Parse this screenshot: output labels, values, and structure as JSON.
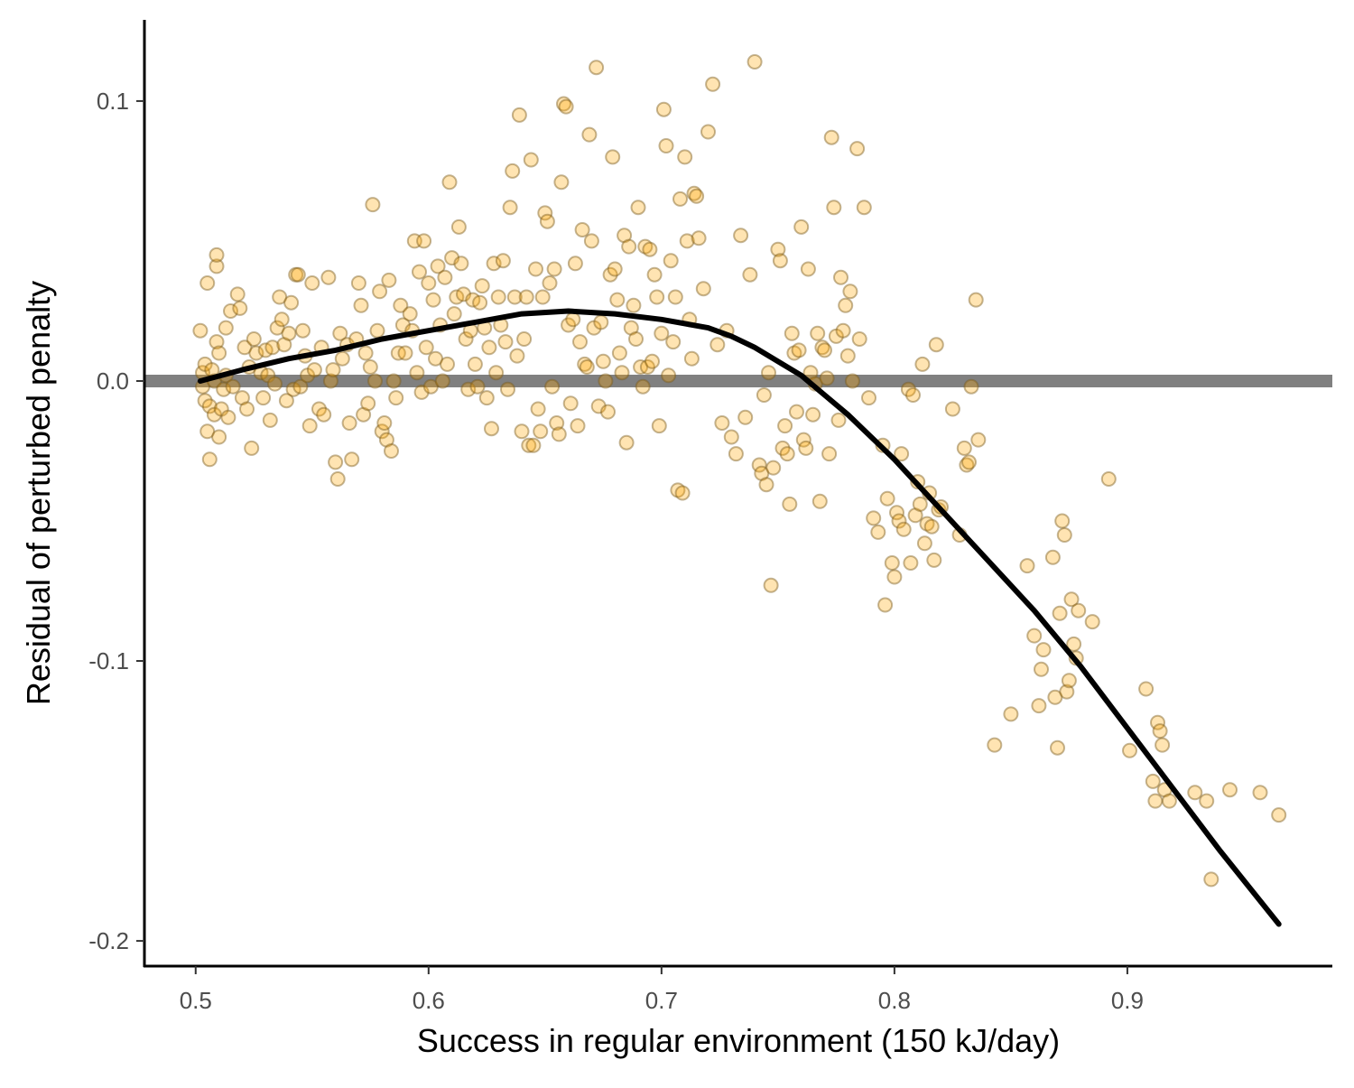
{
  "chart_data": {
    "type": "scatter",
    "title": "",
    "xlabel": "Success in regular environment (150 kJ/day)",
    "ylabel": "Residual of perturbed penalty",
    "xlim": [
      0.478,
      0.988
    ],
    "ylim": [
      -0.209,
      0.129
    ],
    "x_ticks": [
      0.5,
      0.6,
      0.7,
      0.8,
      0.9
    ],
    "x_tick_labels": [
      "0.5",
      "0.6",
      "0.7",
      "0.8",
      "0.9"
    ],
    "y_ticks": [
      -0.2,
      -0.1,
      0.0,
      0.1
    ],
    "y_tick_labels": [
      "-0.2",
      "-0.1",
      "0.0",
      "0.1"
    ],
    "grid": false,
    "legend": "none",
    "reference_line": {
      "y": 0.0,
      "color": "#808080"
    },
    "colors": {
      "point_fill": "#FFA500",
      "point_stroke": "#7a5a1a",
      "curve": "#000000",
      "axis": "#000000"
    },
    "points": [
      [
        0.502,
        0.018
      ],
      [
        0.503,
        0.003
      ],
      [
        0.504,
        0.006
      ],
      [
        0.503,
        -0.002
      ],
      [
        0.504,
        -0.007
      ],
      [
        0.505,
        0.035
      ],
      [
        0.505,
        -0.018
      ],
      [
        0.506,
        -0.009
      ],
      [
        0.506,
        -0.028
      ],
      [
        0.507,
        0.004
      ],
      [
        0.508,
        -0.012
      ],
      [
        0.508,
        0.0
      ],
      [
        0.509,
        0.041
      ],
      [
        0.509,
        0.045
      ],
      [
        0.509,
        0.014
      ],
      [
        0.51,
        -0.02
      ],
      [
        0.51,
        0.01
      ],
      [
        0.511,
        -0.01
      ],
      [
        0.512,
        -0.003
      ],
      [
        0.513,
        0.002
      ],
      [
        0.513,
        0.019
      ],
      [
        0.514,
        -0.013
      ],
      [
        0.515,
        0.025
      ],
      [
        0.516,
        -0.002
      ],
      [
        0.518,
        0.031
      ],
      [
        0.519,
        0.026
      ],
      [
        0.52,
        -0.006
      ],
      [
        0.521,
        0.012
      ],
      [
        0.522,
        -0.01
      ],
      [
        0.523,
        0.005
      ],
      [
        0.524,
        -0.024
      ],
      [
        0.525,
        0.015
      ],
      [
        0.526,
        0.01
      ],
      [
        0.528,
        0.003
      ],
      [
        0.529,
        -0.006
      ],
      [
        0.53,
        0.011
      ],
      [
        0.531,
        0.002
      ],
      [
        0.532,
        -0.014
      ],
      [
        0.533,
        0.012
      ],
      [
        0.534,
        -0.001
      ],
      [
        0.535,
        0.019
      ],
      [
        0.536,
        0.03
      ],
      [
        0.537,
        0.022
      ],
      [
        0.538,
        0.013
      ],
      [
        0.539,
        -0.007
      ],
      [
        0.54,
        0.017
      ],
      [
        0.541,
        0.028
      ],
      [
        0.542,
        -0.003
      ],
      [
        0.543,
        0.038
      ],
      [
        0.544,
        0.038
      ],
      [
        0.545,
        -0.002
      ],
      [
        0.546,
        0.018
      ],
      [
        0.547,
        0.009
      ],
      [
        0.548,
        0.002
      ],
      [
        0.549,
        -0.016
      ],
      [
        0.55,
        0.035
      ],
      [
        0.551,
        0.004
      ],
      [
        0.553,
        -0.01
      ],
      [
        0.554,
        0.012
      ],
      [
        0.555,
        -0.012
      ],
      [
        0.557,
        0.037
      ],
      [
        0.558,
        0.0
      ],
      [
        0.559,
        0.004
      ],
      [
        0.56,
        -0.029
      ],
      [
        0.561,
        -0.035
      ],
      [
        0.562,
        0.017
      ],
      [
        0.563,
        0.008
      ],
      [
        0.565,
        0.013
      ],
      [
        0.566,
        -0.015
      ],
      [
        0.567,
        -0.028
      ],
      [
        0.569,
        0.015
      ],
      [
        0.57,
        0.035
      ],
      [
        0.571,
        0.027
      ],
      [
        0.572,
        -0.012
      ],
      [
        0.573,
        0.01
      ],
      [
        0.574,
        -0.008
      ],
      [
        0.575,
        0.005
      ],
      [
        0.576,
        0.063
      ],
      [
        0.577,
        0.0
      ],
      [
        0.578,
        0.018
      ],
      [
        0.579,
        0.032
      ],
      [
        0.58,
        -0.018
      ],
      [
        0.581,
        -0.015
      ],
      [
        0.582,
        -0.021
      ],
      [
        0.583,
        0.036
      ],
      [
        0.584,
        -0.025
      ],
      [
        0.585,
        0.0
      ],
      [
        0.586,
        -0.006
      ],
      [
        0.587,
        0.01
      ],
      [
        0.588,
        0.027
      ],
      [
        0.589,
        0.02
      ],
      [
        0.59,
        0.01
      ],
      [
        0.592,
        0.024
      ],
      [
        0.593,
        0.018
      ],
      [
        0.594,
        0.05
      ],
      [
        0.595,
        0.003
      ],
      [
        0.596,
        0.039
      ],
      [
        0.597,
        -0.004
      ],
      [
        0.598,
        0.05
      ],
      [
        0.599,
        0.012
      ],
      [
        0.6,
        0.035
      ],
      [
        0.601,
        -0.002
      ],
      [
        0.602,
        0.029
      ],
      [
        0.603,
        0.008
      ],
      [
        0.604,
        0.041
      ],
      [
        0.605,
        0.02
      ],
      [
        0.606,
        0.0
      ],
      [
        0.607,
        0.037
      ],
      [
        0.608,
        0.006
      ],
      [
        0.609,
        0.071
      ],
      [
        0.61,
        0.044
      ],
      [
        0.611,
        0.024
      ],
      [
        0.612,
        0.03
      ],
      [
        0.613,
        0.055
      ],
      [
        0.614,
        0.042
      ],
      [
        0.615,
        0.031
      ],
      [
        0.616,
        0.015
      ],
      [
        0.617,
        -0.003
      ],
      [
        0.618,
        0.018
      ],
      [
        0.619,
        0.029
      ],
      [
        0.62,
        0.006
      ],
      [
        0.621,
        -0.002
      ],
      [
        0.622,
        0.028
      ],
      [
        0.623,
        0.034
      ],
      [
        0.624,
        0.019
      ],
      [
        0.625,
        -0.006
      ],
      [
        0.626,
        0.012
      ],
      [
        0.627,
        -0.017
      ],
      [
        0.628,
        0.042
      ],
      [
        0.629,
        0.003
      ],
      [
        0.63,
        0.03
      ],
      [
        0.631,
        0.02
      ],
      [
        0.632,
        0.043
      ],
      [
        0.633,
        0.014
      ],
      [
        0.634,
        -0.003
      ],
      [
        0.635,
        0.062
      ],
      [
        0.636,
        0.075
      ],
      [
        0.637,
        0.03
      ],
      [
        0.638,
        0.009
      ],
      [
        0.639,
        0.095
      ],
      [
        0.64,
        -0.018
      ],
      [
        0.641,
        0.015
      ],
      [
        0.642,
        0.03
      ],
      [
        0.643,
        -0.023
      ],
      [
        0.644,
        0.079
      ],
      [
        0.645,
        -0.023
      ],
      [
        0.646,
        0.04
      ],
      [
        0.647,
        -0.01
      ],
      [
        0.648,
        -0.018
      ],
      [
        0.649,
        0.03
      ],
      [
        0.65,
        0.06
      ],
      [
        0.651,
        0.057
      ],
      [
        0.652,
        0.035
      ],
      [
        0.653,
        -0.002
      ],
      [
        0.654,
        0.04
      ],
      [
        0.655,
        -0.015
      ],
      [
        0.656,
        -0.019
      ],
      [
        0.657,
        0.071
      ],
      [
        0.658,
        0.099
      ],
      [
        0.659,
        0.098
      ],
      [
        0.66,
        0.02
      ],
      [
        0.661,
        -0.008
      ],
      [
        0.662,
        0.022
      ],
      [
        0.663,
        0.042
      ],
      [
        0.664,
        -0.016
      ],
      [
        0.665,
        0.014
      ],
      [
        0.666,
        0.054
      ],
      [
        0.667,
        0.006
      ],
      [
        0.668,
        0.005
      ],
      [
        0.669,
        0.088
      ],
      [
        0.67,
        0.05
      ],
      [
        0.671,
        0.019
      ],
      [
        0.672,
        0.112
      ],
      [
        0.673,
        -0.009
      ],
      [
        0.674,
        0.021
      ],
      [
        0.675,
        0.007
      ],
      [
        0.676,
        0.0
      ],
      [
        0.677,
        -0.011
      ],
      [
        0.678,
        0.038
      ],
      [
        0.679,
        0.08
      ],
      [
        0.68,
        0.04
      ],
      [
        0.681,
        0.029
      ],
      [
        0.682,
        0.01
      ],
      [
        0.683,
        0.003
      ],
      [
        0.684,
        0.052
      ],
      [
        0.685,
        -0.022
      ],
      [
        0.686,
        0.048
      ],
      [
        0.687,
        0.019
      ],
      [
        0.688,
        0.027
      ],
      [
        0.689,
        0.015
      ],
      [
        0.69,
        0.062
      ],
      [
        0.691,
        0.005
      ],
      [
        0.692,
        -0.002
      ],
      [
        0.693,
        0.048
      ],
      [
        0.694,
        0.005
      ],
      [
        0.695,
        0.047
      ],
      [
        0.696,
        0.007
      ],
      [
        0.697,
        0.038
      ],
      [
        0.698,
        0.03
      ],
      [
        0.699,
        -0.016
      ],
      [
        0.7,
        0.017
      ],
      [
        0.701,
        0.097
      ],
      [
        0.702,
        0.084
      ],
      [
        0.703,
        0.002
      ],
      [
        0.704,
        0.043
      ],
      [
        0.705,
        0.014
      ],
      [
        0.706,
        0.03
      ],
      [
        0.707,
        -0.039
      ],
      [
        0.708,
        0.065
      ],
      [
        0.709,
        -0.04
      ],
      [
        0.71,
        0.08
      ],
      [
        0.711,
        0.05
      ],
      [
        0.712,
        0.022
      ],
      [
        0.713,
        0.008
      ],
      [
        0.714,
        0.067
      ],
      [
        0.715,
        0.066
      ],
      [
        0.716,
        0.051
      ],
      [
        0.718,
        0.033
      ],
      [
        0.72,
        0.089
      ],
      [
        0.722,
        0.106
      ],
      [
        0.724,
        0.013
      ],
      [
        0.726,
        -0.015
      ],
      [
        0.728,
        0.018
      ],
      [
        0.73,
        -0.02
      ],
      [
        0.732,
        -0.026
      ],
      [
        0.734,
        0.052
      ],
      [
        0.736,
        -0.013
      ],
      [
        0.738,
        0.038
      ],
      [
        0.74,
        0.114
      ],
      [
        0.742,
        -0.03
      ],
      [
        0.743,
        -0.033
      ],
      [
        0.744,
        -0.005
      ],
      [
        0.745,
        -0.037
      ],
      [
        0.746,
        0.003
      ],
      [
        0.747,
        -0.073
      ],
      [
        0.748,
        -0.031
      ],
      [
        0.75,
        0.047
      ],
      [
        0.751,
        0.043
      ],
      [
        0.752,
        -0.024
      ],
      [
        0.753,
        -0.016
      ],
      [
        0.754,
        -0.026
      ],
      [
        0.755,
        -0.044
      ],
      [
        0.756,
        0.017
      ],
      [
        0.757,
        0.01
      ],
      [
        0.758,
        -0.011
      ],
      [
        0.759,
        0.011
      ],
      [
        0.76,
        0.055
      ],
      [
        0.761,
        -0.021
      ],
      [
        0.762,
        -0.024
      ],
      [
        0.763,
        0.04
      ],
      [
        0.764,
        0.003
      ],
      [
        0.765,
        -0.012
      ],
      [
        0.766,
        -0.001
      ],
      [
        0.767,
        0.017
      ],
      [
        0.768,
        -0.043
      ],
      [
        0.769,
        0.012
      ],
      [
        0.77,
        0.011
      ],
      [
        0.771,
        0.001
      ],
      [
        0.772,
        -0.026
      ],
      [
        0.773,
        0.087
      ],
      [
        0.774,
        0.062
      ],
      [
        0.775,
        0.016
      ],
      [
        0.776,
        -0.014
      ],
      [
        0.777,
        0.037
      ],
      [
        0.778,
        0.018
      ],
      [
        0.779,
        0.027
      ],
      [
        0.78,
        0.009
      ],
      [
        0.781,
        0.032
      ],
      [
        0.782,
        0.0
      ],
      [
        0.784,
        0.083
      ],
      [
        0.785,
        0.015
      ],
      [
        0.787,
        0.062
      ],
      [
        0.789,
        -0.006
      ],
      [
        0.791,
        -0.049
      ],
      [
        0.793,
        -0.054
      ],
      [
        0.795,
        -0.023
      ],
      [
        0.796,
        -0.08
      ],
      [
        0.797,
        -0.042
      ],
      [
        0.799,
        -0.065
      ],
      [
        0.8,
        -0.07
      ],
      [
        0.801,
        -0.047
      ],
      [
        0.802,
        -0.05
      ],
      [
        0.803,
        -0.026
      ],
      [
        0.804,
        -0.053
      ],
      [
        0.806,
        -0.003
      ],
      [
        0.807,
        -0.065
      ],
      [
        0.808,
        -0.005
      ],
      [
        0.809,
        -0.048
      ],
      [
        0.81,
        -0.036
      ],
      [
        0.811,
        -0.044
      ],
      [
        0.812,
        0.006
      ],
      [
        0.813,
        -0.058
      ],
      [
        0.814,
        -0.051
      ],
      [
        0.815,
        -0.04
      ],
      [
        0.816,
        -0.052
      ],
      [
        0.817,
        -0.064
      ],
      [
        0.818,
        0.013
      ],
      [
        0.819,
        -0.046
      ],
      [
        0.82,
        -0.045
      ],
      [
        0.825,
        -0.01
      ],
      [
        0.828,
        -0.055
      ],
      [
        0.83,
        -0.024
      ],
      [
        0.831,
        -0.03
      ],
      [
        0.832,
        -0.029
      ],
      [
        0.833,
        -0.002
      ],
      [
        0.835,
        0.029
      ],
      [
        0.836,
        -0.021
      ],
      [
        0.843,
        -0.13
      ],
      [
        0.85,
        -0.119
      ],
      [
        0.857,
        -0.066
      ],
      [
        0.86,
        -0.091
      ],
      [
        0.862,
        -0.116
      ],
      [
        0.863,
        -0.103
      ],
      [
        0.864,
        -0.096
      ],
      [
        0.868,
        -0.063
      ],
      [
        0.869,
        -0.113
      ],
      [
        0.87,
        -0.131
      ],
      [
        0.871,
        -0.083
      ],
      [
        0.872,
        -0.05
      ],
      [
        0.873,
        -0.055
      ],
      [
        0.874,
        -0.111
      ],
      [
        0.875,
        -0.107
      ],
      [
        0.876,
        -0.078
      ],
      [
        0.877,
        -0.094
      ],
      [
        0.878,
        -0.099
      ],
      [
        0.879,
        -0.082
      ],
      [
        0.885,
        -0.086
      ],
      [
        0.892,
        -0.035
      ],
      [
        0.901,
        -0.132
      ],
      [
        0.908,
        -0.11
      ],
      [
        0.911,
        -0.143
      ],
      [
        0.912,
        -0.15
      ],
      [
        0.913,
        -0.122
      ],
      [
        0.914,
        -0.125
      ],
      [
        0.915,
        -0.13
      ],
      [
        0.916,
        -0.146
      ],
      [
        0.918,
        -0.15
      ],
      [
        0.929,
        -0.147
      ],
      [
        0.934,
        -0.15
      ],
      [
        0.936,
        -0.178
      ],
      [
        0.944,
        -0.146
      ],
      [
        0.957,
        -0.147
      ],
      [
        0.965,
        -0.155
      ]
    ],
    "fit_curve": [
      [
        0.502,
        0.0
      ],
      [
        0.52,
        0.004
      ],
      [
        0.54,
        0.008
      ],
      [
        0.56,
        0.011
      ],
      [
        0.58,
        0.015
      ],
      [
        0.6,
        0.018
      ],
      [
        0.62,
        0.021
      ],
      [
        0.64,
        0.024
      ],
      [
        0.66,
        0.025
      ],
      [
        0.68,
        0.024
      ],
      [
        0.7,
        0.022
      ],
      [
        0.72,
        0.019
      ],
      [
        0.73,
        0.016
      ],
      [
        0.74,
        0.012
      ],
      [
        0.75,
        0.007
      ],
      [
        0.76,
        0.002
      ],
      [
        0.77,
        -0.005
      ],
      [
        0.78,
        -0.012
      ],
      [
        0.79,
        -0.02
      ],
      [
        0.8,
        -0.028
      ],
      [
        0.82,
        -0.046
      ],
      [
        0.84,
        -0.064
      ],
      [
        0.86,
        -0.082
      ],
      [
        0.88,
        -0.102
      ],
      [
        0.9,
        -0.124
      ],
      [
        0.92,
        -0.146
      ],
      [
        0.94,
        -0.168
      ],
      [
        0.965,
        -0.194
      ]
    ]
  }
}
